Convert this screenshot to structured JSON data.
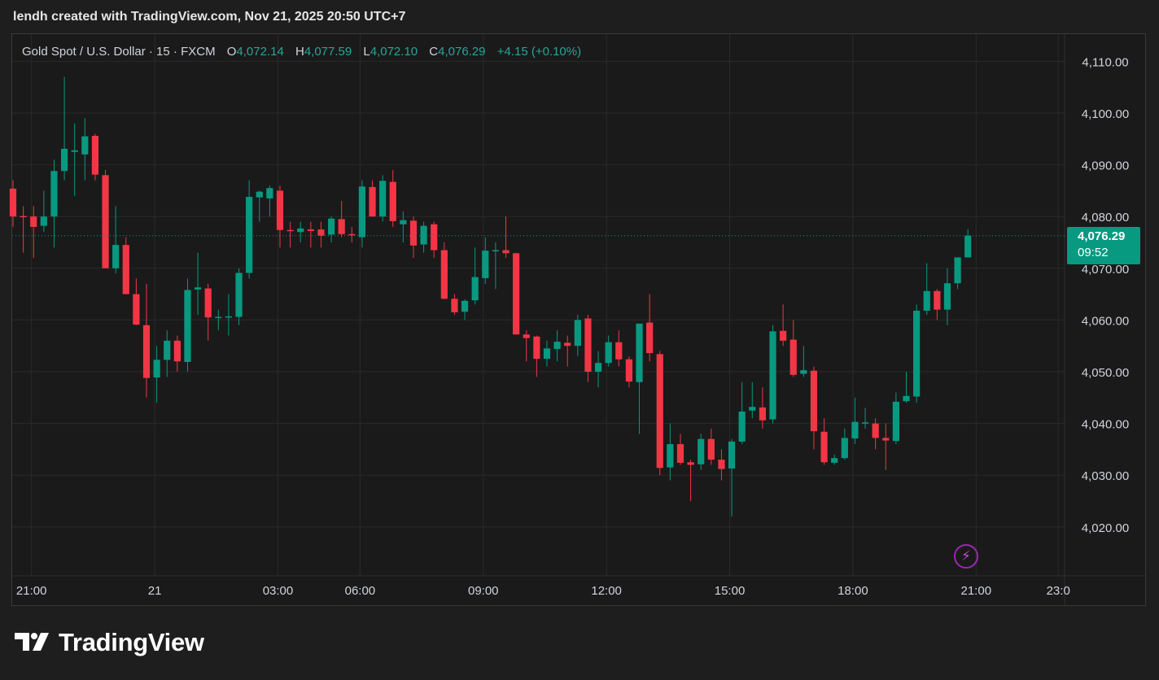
{
  "caption": "lendh created with TradingView.com, Nov 21, 2025 20:50 UTC+7",
  "legend": {
    "symbol": "Gold Spot / U.S. Dollar · 15 · FXCM",
    "open_label": "O",
    "open": "4,072.14",
    "high_label": "H",
    "high": "4,077.59",
    "low_label": "L",
    "low": "4,072.10",
    "close_label": "C",
    "close": "4,076.29",
    "change": "+4.15 (+0.10%)"
  },
  "price_tag": {
    "price": "4,076.29",
    "countdown": "09:52"
  },
  "brand": {
    "name": "TradingView",
    "logo_icon": "tradingview-logo-icon"
  },
  "alert_icon": "lightning-bolt-icon",
  "colors": {
    "up": "#089981",
    "down": "#f23645",
    "background": "#1a1a1a",
    "grid": "#2a2a2a"
  },
  "chart_data": {
    "type": "candlestick",
    "ylim": [
      4013,
      4115
    ],
    "y_ticks": [
      4020,
      4030,
      4040,
      4050,
      4060,
      4070,
      4080,
      4090,
      4100,
      4110
    ],
    "y_tick_labels": [
      "4,020.00",
      "4,030.00",
      "4,040.00",
      "4,050.00",
      "4,060.00",
      "4,070.00",
      "4,080.00",
      "4,090.00",
      "4,100.00",
      "4,110.00"
    ],
    "x_tick_labels": [
      "21:00",
      "21",
      "03:00",
      "06:00",
      "09:00",
      "12:00",
      "15:00",
      "18:00",
      "21:00",
      "23:0"
    ],
    "x_tick_slots": [
      1.8,
      13.8,
      25.8,
      33.8,
      45.8,
      57.8,
      69.8,
      81.8,
      93.8,
      101.8
    ],
    "last_price": 4076.29,
    "candles": [
      {
        "o": 4085.4,
        "h": 4087.0,
        "l": 4078.0,
        "c": 4080.0
      },
      {
        "o": 4080.1,
        "h": 4082.0,
        "l": 4073.0,
        "c": 4080.0
      },
      {
        "o": 4080.0,
        "h": 4082.0,
        "l": 4072.0,
        "c": 4078.0
      },
      {
        "o": 4078.2,
        "h": 4085.0,
        "l": 4077.0,
        "c": 4080.0
      },
      {
        "o": 4080.0,
        "h": 4091.0,
        "l": 4074.0,
        "c": 4088.8
      },
      {
        "o": 4088.8,
        "h": 4107.0,
        "l": 4087.0,
        "c": 4093.1
      },
      {
        "o": 4092.5,
        "h": 4098.0,
        "l": 4084.0,
        "c": 4092.8
      },
      {
        "o": 4092.0,
        "h": 4099.0,
        "l": 4087.0,
        "c": 4095.5
      },
      {
        "o": 4095.6,
        "h": 4096.0,
        "l": 4087.0,
        "c": 4088.1
      },
      {
        "o": 4088.0,
        "h": 4089.0,
        "l": 4070.0,
        "c": 4070.0
      },
      {
        "o": 4070.0,
        "h": 4082.0,
        "l": 4069.0,
        "c": 4074.5
      },
      {
        "o": 4074.5,
        "h": 4076.0,
        "l": 4065.0,
        "c": 4065.0
      },
      {
        "o": 4065.0,
        "h": 4068.0,
        "l": 4059.0,
        "c": 4059.1
      },
      {
        "o": 4059.0,
        "h": 4067.0,
        "l": 4045.0,
        "c": 4048.8
      },
      {
        "o": 4048.9,
        "h": 4055.0,
        "l": 4044.0,
        "c": 4052.3
      },
      {
        "o": 4052.3,
        "h": 4058.0,
        "l": 4049.0,
        "c": 4056.0
      },
      {
        "o": 4056.0,
        "h": 4057.0,
        "l": 4050.0,
        "c": 4052.0
      },
      {
        "o": 4051.9,
        "h": 4068.0,
        "l": 4050.0,
        "c": 4065.8
      },
      {
        "o": 4065.9,
        "h": 4073.0,
        "l": 4061.0,
        "c": 4066.3
      },
      {
        "o": 4066.1,
        "h": 4067.0,
        "l": 4056.0,
        "c": 4060.5
      },
      {
        "o": 4060.4,
        "h": 4062.0,
        "l": 4058.0,
        "c": 4060.6
      },
      {
        "o": 4060.5,
        "h": 4065.0,
        "l": 4057.0,
        "c": 4060.7
      },
      {
        "o": 4060.6,
        "h": 4070.0,
        "l": 4059.0,
        "c": 4069.1
      },
      {
        "o": 4069.1,
        "h": 4087.0,
        "l": 4068.0,
        "c": 4083.8
      },
      {
        "o": 4083.7,
        "h": 4085.0,
        "l": 4079.0,
        "c": 4084.8
      },
      {
        "o": 4083.5,
        "h": 4086.0,
        "l": 4080.0,
        "c": 4085.5
      },
      {
        "o": 4085.0,
        "h": 4086.0,
        "l": 4074.0,
        "c": 4077.4
      },
      {
        "o": 4077.4,
        "h": 4079.0,
        "l": 4074.0,
        "c": 4077.2
      },
      {
        "o": 4077.0,
        "h": 4079.0,
        "l": 4075.0,
        "c": 4077.7
      },
      {
        "o": 4077.5,
        "h": 4079.0,
        "l": 4074.0,
        "c": 4077.2
      },
      {
        "o": 4077.5,
        "h": 4079.0,
        "l": 4074.0,
        "c": 4076.3
      },
      {
        "o": 4076.5,
        "h": 4080.0,
        "l": 4075.0,
        "c": 4079.6
      },
      {
        "o": 4079.5,
        "h": 4083.0,
        "l": 4076.0,
        "c": 4076.6
      },
      {
        "o": 4076.6,
        "h": 4078.0,
        "l": 4075.0,
        "c": 4076.5
      },
      {
        "o": 4076.0,
        "h": 4087.0,
        "l": 4074.0,
        "c": 4085.8
      },
      {
        "o": 4085.7,
        "h": 4087.0,
        "l": 4080.0,
        "c": 4080.0
      },
      {
        "o": 4080.0,
        "h": 4088.0,
        "l": 4079.0,
        "c": 4086.9
      },
      {
        "o": 4086.7,
        "h": 4089.0,
        "l": 4078.0,
        "c": 4079.1
      },
      {
        "o": 4078.5,
        "h": 4081.0,
        "l": 4075.0,
        "c": 4079.3
      },
      {
        "o": 4079.2,
        "h": 4080.0,
        "l": 4072.0,
        "c": 4074.4
      },
      {
        "o": 4074.6,
        "h": 4079.0,
        "l": 4073.0,
        "c": 4078.2
      },
      {
        "o": 4078.5,
        "h": 4079.0,
        "l": 4072.0,
        "c": 4073.5
      },
      {
        "o": 4073.5,
        "h": 4075.0,
        "l": 4064.0,
        "c": 4064.1
      },
      {
        "o": 4064.1,
        "h": 4065.0,
        "l": 4061.0,
        "c": 4061.5
      },
      {
        "o": 4061.6,
        "h": 4064.0,
        "l": 4060.0,
        "c": 4063.7
      },
      {
        "o": 4063.8,
        "h": 4074.0,
        "l": 4063.0,
        "c": 4068.3
      },
      {
        "o": 4068.1,
        "h": 4076.0,
        "l": 4067.0,
        "c": 4073.4
      },
      {
        "o": 4073.4,
        "h": 4075.0,
        "l": 4066.0,
        "c": 4073.5
      },
      {
        "o": 4073.5,
        "h": 4080.0,
        "l": 4072.0,
        "c": 4072.9
      },
      {
        "o": 4072.9,
        "h": 4073.0,
        "l": 4058.0,
        "c": 4057.2
      },
      {
        "o": 4057.2,
        "h": 4058.0,
        "l": 4052.0,
        "c": 4056.5
      },
      {
        "o": 4056.8,
        "h": 4057.0,
        "l": 4049.0,
        "c": 4052.5
      },
      {
        "o": 4052.5,
        "h": 4056.0,
        "l": 4051.0,
        "c": 4054.5
      },
      {
        "o": 4054.4,
        "h": 4058.0,
        "l": 4052.0,
        "c": 4055.8
      },
      {
        "o": 4055.6,
        "h": 4057.0,
        "l": 4051.0,
        "c": 4055.0
      },
      {
        "o": 4055.0,
        "h": 4061.0,
        "l": 4053.0,
        "c": 4060.0
      },
      {
        "o": 4060.3,
        "h": 4061.0,
        "l": 4048.0,
        "c": 4050.0
      },
      {
        "o": 4050.0,
        "h": 4054.0,
        "l": 4047.0,
        "c": 4051.7
      },
      {
        "o": 4051.7,
        "h": 4057.0,
        "l": 4051.0,
        "c": 4055.7
      },
      {
        "o": 4055.7,
        "h": 4058.0,
        "l": 4051.0,
        "c": 4052.4
      },
      {
        "o": 4052.4,
        "h": 4053.0,
        "l": 4047.0,
        "c": 4048.1
      },
      {
        "o": 4048.0,
        "h": 4059.0,
        "l": 4038.0,
        "c": 4059.3
      },
      {
        "o": 4059.5,
        "h": 4065.0,
        "l": 4052.0,
        "c": 4053.6
      },
      {
        "o": 4053.4,
        "h": 4054.0,
        "l": 4030.0,
        "c": 4031.4
      },
      {
        "o": 4031.5,
        "h": 4040.0,
        "l": 4029.0,
        "c": 4036.0
      },
      {
        "o": 4036.0,
        "h": 4038.0,
        "l": 4032.0,
        "c": 4032.4
      },
      {
        "o": 4032.5,
        "h": 4033.0,
        "l": 4025.0,
        "c": 4032.0
      },
      {
        "o": 4032.1,
        "h": 4038.0,
        "l": 4031.0,
        "c": 4037.0
      },
      {
        "o": 4037.0,
        "h": 4039.0,
        "l": 4032.0,
        "c": 4033.0
      },
      {
        "o": 4033.0,
        "h": 4035.0,
        "l": 4029.0,
        "c": 4031.2
      },
      {
        "o": 4031.3,
        "h": 4037.0,
        "l": 4022.0,
        "c": 4036.5
      },
      {
        "o": 4036.5,
        "h": 4048.0,
        "l": 4036.0,
        "c": 4042.3
      },
      {
        "o": 4042.5,
        "h": 4048.0,
        "l": 4041.0,
        "c": 4043.2
      },
      {
        "o": 4043.1,
        "h": 4047.0,
        "l": 4039.0,
        "c": 4040.6
      },
      {
        "o": 4040.8,
        "h": 4059.0,
        "l": 4040.0,
        "c": 4057.8
      },
      {
        "o": 4057.9,
        "h": 4063.0,
        "l": 4055.0,
        "c": 4056.0
      },
      {
        "o": 4056.2,
        "h": 4060.0,
        "l": 4049.0,
        "c": 4049.4
      },
      {
        "o": 4049.6,
        "h": 4055.0,
        "l": 4049.0,
        "c": 4050.3
      },
      {
        "o": 4050.2,
        "h": 4051.0,
        "l": 4035.0,
        "c": 4038.5
      },
      {
        "o": 4038.4,
        "h": 4041.0,
        "l": 4032.0,
        "c": 4032.5
      },
      {
        "o": 4032.4,
        "h": 4034.0,
        "l": 4032.0,
        "c": 4033.3
      },
      {
        "o": 4033.3,
        "h": 4039.0,
        "l": 4033.0,
        "c": 4037.2
      },
      {
        "o": 4037.1,
        "h": 4045.0,
        "l": 4036.0,
        "c": 4040.3
      },
      {
        "o": 4040.1,
        "h": 4043.0,
        "l": 4039.0,
        "c": 4040.2
      },
      {
        "o": 4040.0,
        "h": 4041.0,
        "l": 4035.0,
        "c": 4037.2
      },
      {
        "o": 4037.2,
        "h": 4040.0,
        "l": 4031.0,
        "c": 4036.7
      },
      {
        "o": 4036.6,
        "h": 4046.0,
        "l": 4036.0,
        "c": 4044.2
      },
      {
        "o": 4044.3,
        "h": 4050.0,
        "l": 4044.0,
        "c": 4045.3
      },
      {
        "o": 4045.2,
        "h": 4063.0,
        "l": 4044.0,
        "c": 4061.8
      },
      {
        "o": 4061.8,
        "h": 4071.0,
        "l": 4061.0,
        "c": 4065.6
      },
      {
        "o": 4065.6,
        "h": 4066.0,
        "l": 4060.0,
        "c": 4062.0
      },
      {
        "o": 4062.0,
        "h": 4070.0,
        "l": 4059.0,
        "c": 4067.1
      },
      {
        "o": 4067.1,
        "h": 4072.0,
        "l": 4066.0,
        "c": 4072.1
      },
      {
        "o": 4072.1,
        "h": 4077.6,
        "l": 4072.1,
        "c": 4076.3
      }
    ]
  }
}
